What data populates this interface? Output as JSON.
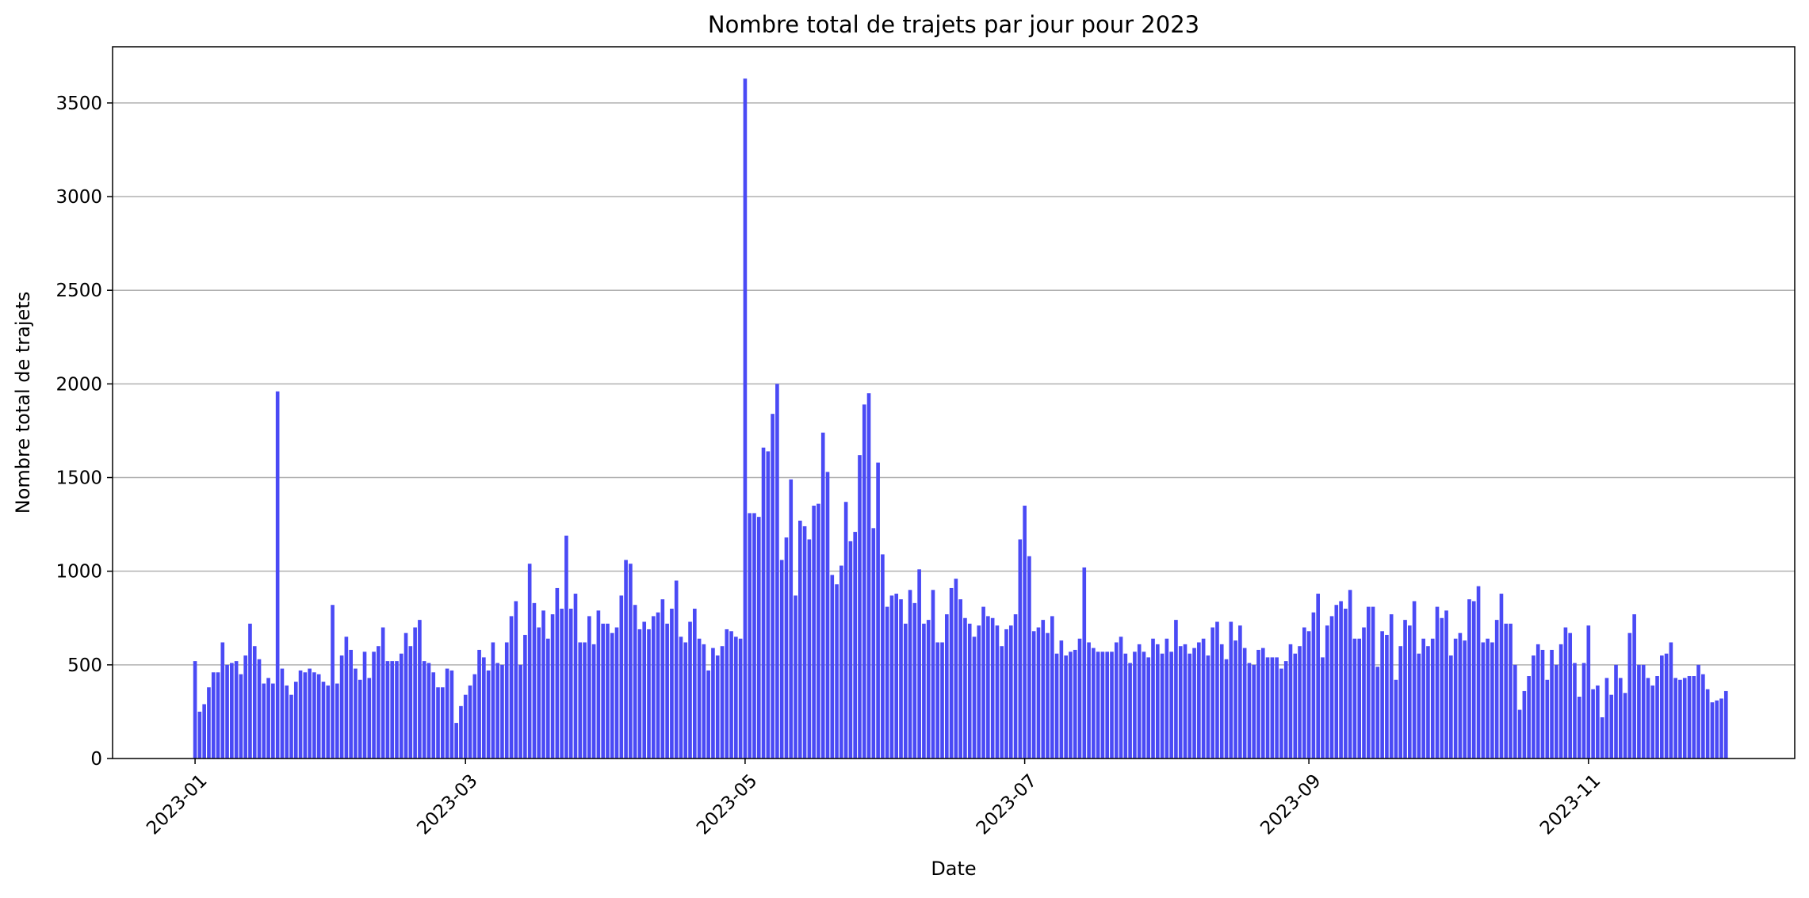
{
  "chart_data": {
    "type": "bar",
    "title": "Nombre total de trajets par jour pour 2023",
    "xlabel": "Date",
    "ylabel": "Nombre total de trajets",
    "ylim": [
      0,
      3800
    ],
    "y_ticks": [
      0,
      500,
      1000,
      1500,
      2000,
      2500,
      3000,
      3500
    ],
    "x_tick_labels": [
      "2023-01",
      "2023-03",
      "2023-05",
      "2023-07",
      "2023-09",
      "2023-11"
    ],
    "x_tick_dates": [
      "2023-01-01",
      "2023-03-01",
      "2023-05-01",
      "2023-07-01",
      "2023-09-01",
      "2023-11-01"
    ],
    "x_range_dates": [
      "2022-12-14",
      "2023-12-16"
    ],
    "x_start_date": "2023-01-01",
    "grid": "y",
    "bar_color": "#4a4af5",
    "values": [
      520,
      250,
      290,
      380,
      460,
      460,
      620,
      500,
      510,
      520,
      450,
      550,
      720,
      600,
      530,
      400,
      430,
      400,
      1960,
      480,
      390,
      340,
      410,
      470,
      460,
      480,
      460,
      450,
      410,
      390,
      820,
      400,
      550,
      650,
      580,
      480,
      420,
      570,
      430,
      570,
      600,
      700,
      520,
      520,
      520,
      560,
      670,
      600,
      700,
      740,
      520,
      510,
      460,
      380,
      380,
      480,
      470,
      190,
      280,
      340,
      390,
      450,
      580,
      540,
      470,
      620,
      510,
      500,
      620,
      760,
      840,
      500,
      660,
      1040,
      830,
      700,
      790,
      640,
      770,
      910,
      800,
      1190,
      800,
      880,
      620,
      620,
      760,
      610,
      790,
      720,
      720,
      670,
      700,
      870,
      1060,
      1040,
      820,
      690,
      730,
      690,
      760,
      780,
      850,
      720,
      800,
      950,
      650,
      620,
      730,
      800,
      640,
      610,
      470,
      590,
      550,
      600,
      690,
      680,
      650,
      640,
      3630,
      1310,
      1310,
      1290,
      1660,
      1640,
      1840,
      2000,
      1060,
      1180,
      1490,
      870,
      1270,
      1240,
      1170,
      1350,
      1360,
      1740,
      1530,
      980,
      930,
      1030,
      1370,
      1160,
      1210,
      1620,
      1890,
      1950,
      1230,
      1580,
      1090,
      810,
      870,
      880,
      850,
      720,
      900,
      830,
      1010,
      720,
      740,
      900,
      620,
      620,
      770,
      910,
      960,
      850,
      750,
      720,
      650,
      710,
      810,
      760,
      750,
      710,
      600,
      690,
      710,
      770,
      1170,
      1350,
      1080,
      680,
      700,
      740,
      670,
      760,
      560,
      630,
      550,
      570,
      580,
      640,
      1020,
      620,
      590,
      570,
      570,
      570,
      570,
      620,
      650,
      560,
      510,
      570,
      610,
      570,
      540,
      640,
      610,
      560,
      640,
      570,
      740,
      600,
      610,
      560,
      590,
      620,
      640,
      550,
      700,
      730,
      610,
      530,
      730,
      630,
      710,
      590,
      510,
      500,
      580,
      590,
      540,
      540,
      540,
      480,
      520,
      610,
      560,
      600,
      700,
      680,
      780,
      880,
      540,
      710,
      760,
      820,
      840,
      800,
      900,
      640,
      640,
      700,
      810,
      810,
      490,
      680,
      660,
      770,
      420,
      600,
      740,
      710,
      840,
      560,
      640,
      600,
      640,
      810,
      750,
      790,
      550,
      640,
      670,
      630,
      850,
      840,
      920,
      620,
      640,
      620,
      740,
      880,
      720,
      720,
      500,
      260,
      360,
      440,
      550,
      610,
      580,
      420,
      580,
      500,
      610,
      700,
      670,
      510,
      330,
      510,
      710,
      370,
      390,
      220,
      430,
      340,
      500,
      430,
      350,
      670,
      770,
      500,
      500,
      430,
      390,
      440,
      550,
      560,
      620,
      430,
      420,
      430,
      440,
      440,
      500,
      450,
      370,
      300,
      310,
      320,
      360
    ]
  }
}
